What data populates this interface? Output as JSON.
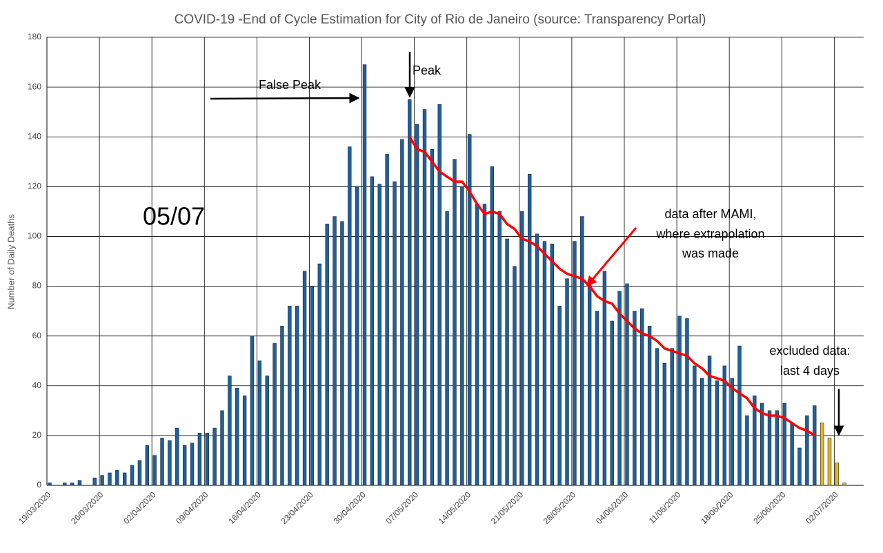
{
  "chart_data": {
    "type": "bar",
    "title": "COVID-19 -End of Cycle Estimation for City of Rio de Janeiro (source: Transparency Portal)",
    "y_label": "Number of Daily Deaths",
    "categories": [
      "19/03/2020",
      null,
      null,
      null,
      null,
      null,
      null,
      "26/03/2020",
      null,
      null,
      null,
      null,
      null,
      null,
      "02/04/2020",
      null,
      null,
      null,
      null,
      null,
      null,
      "09/04/2020",
      null,
      null,
      null,
      null,
      null,
      null,
      "16/04/2020",
      null,
      null,
      null,
      null,
      null,
      null,
      "23/04/2020",
      null,
      null,
      null,
      null,
      null,
      null,
      "30/04/2020",
      null,
      null,
      null,
      null,
      null,
      null,
      "07/05/2020",
      null,
      null,
      null,
      null,
      null,
      null,
      "14/05/2020",
      null,
      null,
      null,
      null,
      null,
      null,
      "21/05/2020",
      null,
      null,
      null,
      null,
      null,
      null,
      "28/05/2020",
      null,
      null,
      null,
      null,
      null,
      null,
      "04/06/2020",
      null,
      null,
      null,
      null,
      null,
      null,
      "11/06/2020",
      null,
      null,
      null,
      null,
      null,
      null,
      "18/06/2020",
      null,
      null,
      null,
      null,
      null,
      null,
      "25/06/2020",
      null,
      null,
      null,
      null,
      null,
      null,
      "02/07/2020",
      null
    ],
    "series": [
      {
        "color": "#1f5f9e",
        "values": [
          1,
          0,
          1,
          1,
          2,
          0,
          3,
          4,
          5,
          6,
          5,
          8,
          10,
          16,
          12,
          19,
          18,
          23,
          16,
          17,
          21,
          21,
          23,
          30,
          44,
          39,
          36,
          60,
          50,
          44,
          57,
          64,
          72,
          72,
          86,
          80,
          89,
          105,
          108,
          106,
          136,
          120,
          169,
          124,
          121,
          133,
          122,
          139,
          155,
          145,
          151,
          135,
          153,
          110,
          131,
          120,
          141,
          113,
          113,
          128,
          110,
          99,
          88,
          110,
          125,
          101,
          98,
          97,
          72,
          83,
          98,
          108,
          82,
          70,
          86,
          66,
          78,
          81,
          70,
          71,
          64,
          55,
          49,
          55,
          68,
          67,
          48,
          43,
          52,
          42,
          48,
          43,
          56,
          28,
          36,
          33,
          30,
          30,
          33,
          25,
          15,
          28,
          32,
          null,
          null,
          null,
          null
        ]
      },
      {
        "color": "#e8b422",
        "values": [
          null,
          null,
          null,
          null,
          null,
          null,
          null,
          null,
          null,
          null,
          null,
          null,
          null,
          null,
          null,
          null,
          null,
          null,
          null,
          null,
          null,
          null,
          null,
          null,
          null,
          null,
          null,
          null,
          null,
          null,
          null,
          null,
          null,
          null,
          null,
          null,
          null,
          null,
          null,
          null,
          null,
          null,
          null,
          null,
          null,
          null,
          null,
          null,
          null,
          null,
          null,
          null,
          null,
          null,
          null,
          null,
          null,
          null,
          null,
          null,
          null,
          null,
          null,
          null,
          null,
          null,
          null,
          null,
          null,
          null,
          null,
          null,
          null,
          null,
          null,
          null,
          null,
          null,
          null,
          null,
          null,
          null,
          null,
          null,
          null,
          null,
          null,
          null,
          null,
          null,
          null,
          null,
          null,
          null,
          null,
          null,
          null,
          null,
          null,
          null,
          null,
          null,
          null,
          25,
          19,
          9,
          1
        ]
      },
      {
        "type": "line",
        "color": "#ff0000",
        "values": [
          null,
          null,
          null,
          null,
          null,
          null,
          null,
          null,
          null,
          null,
          null,
          null,
          null,
          null,
          null,
          null,
          null,
          null,
          null,
          null,
          null,
          null,
          null,
          null,
          null,
          null,
          null,
          null,
          null,
          null,
          null,
          null,
          null,
          null,
          null,
          null,
          null,
          null,
          null,
          null,
          null,
          null,
          null,
          null,
          null,
          null,
          null,
          null,
          140,
          135,
          134,
          130,
          126,
          124,
          122,
          122,
          118,
          113,
          109,
          110,
          109,
          105,
          103,
          99,
          98,
          96,
          93,
          90,
          87,
          85,
          84,
          83,
          80,
          76,
          74,
          73,
          69,
          66,
          63,
          61,
          60,
          58,
          55,
          54,
          53,
          52,
          49,
          47,
          44,
          43,
          42,
          39,
          37,
          35,
          31,
          29,
          28,
          28,
          27,
          25,
          23,
          22,
          20,
          null,
          null,
          null,
          null
        ]
      }
    ],
    "ylim": [
      0,
      180
    ],
    "yticks": [
      0,
      20,
      40,
      60,
      80,
      100,
      120,
      140,
      160,
      180
    ],
    "grid": true,
    "annotations": [
      "False Peak",
      "Peak",
      "05/07",
      [
        "data after MAMI,",
        "where extrapolation",
        "was made"
      ],
      [
        "excluded data:",
        "last 4 days"
      ]
    ]
  }
}
